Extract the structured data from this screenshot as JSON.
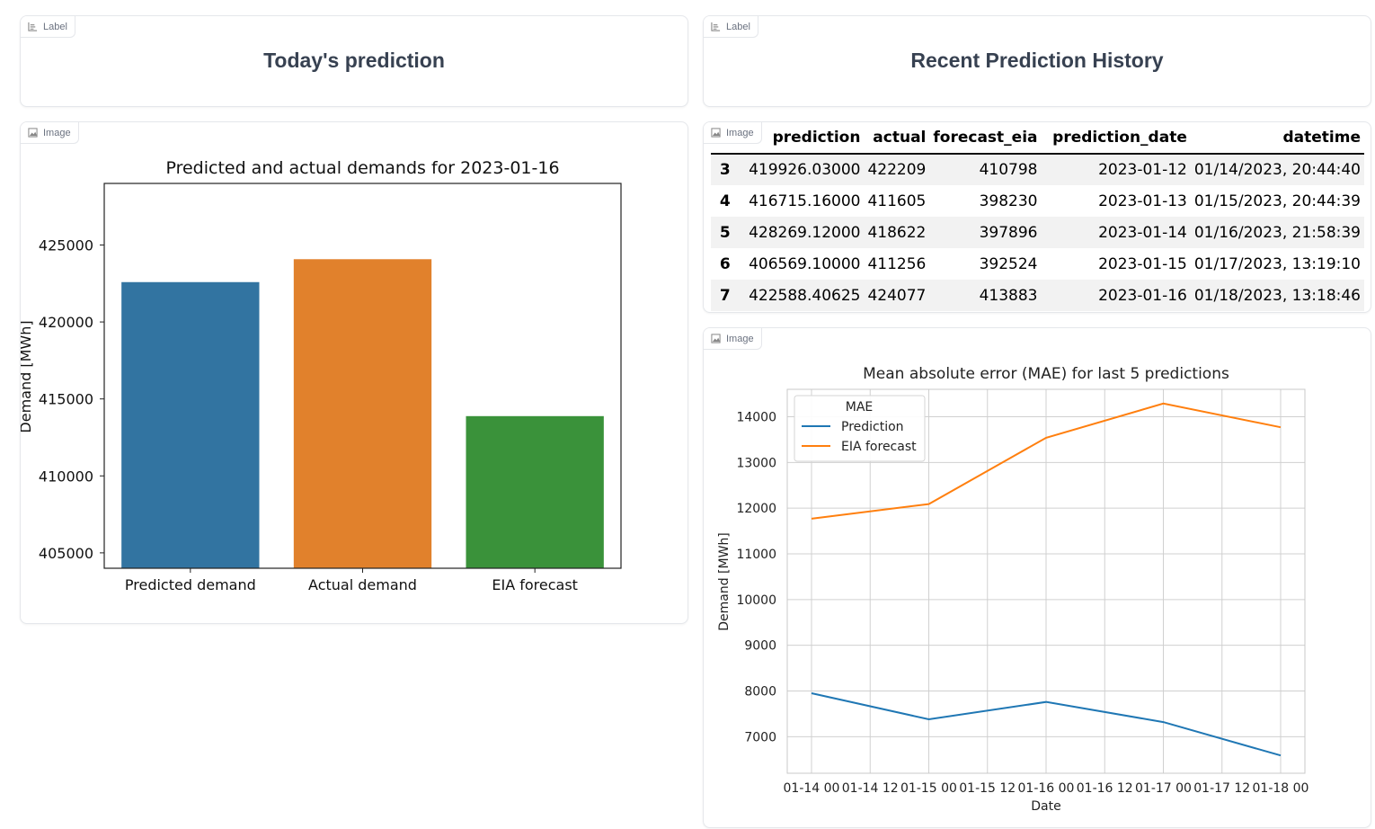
{
  "panels": {
    "today_label": {
      "tag": "Label",
      "title": "Today's prediction"
    },
    "history_label": {
      "tag": "Label",
      "title": "Recent Prediction History"
    },
    "bar_image": {
      "tag": "Image"
    },
    "table_image": {
      "tag": "Image"
    },
    "line_image": {
      "tag": "Image"
    }
  },
  "table": {
    "columns": [
      "",
      "prediction",
      "actual",
      "forecast_eia",
      "prediction_date",
      "datetime"
    ],
    "rows": [
      [
        "3",
        "419926.03000",
        "422209",
        "410798",
        "2023-01-12",
        "01/14/2023, 20:44:40"
      ],
      [
        "4",
        "416715.16000",
        "411605",
        "398230",
        "2023-01-13",
        "01/15/2023, 20:44:39"
      ],
      [
        "5",
        "428269.12000",
        "418622",
        "397896",
        "2023-01-14",
        "01/16/2023, 21:58:39"
      ],
      [
        "6",
        "406569.10000",
        "411256",
        "392524",
        "2023-01-15",
        "01/17/2023, 13:19:10"
      ],
      [
        "7",
        "422588.40625",
        "424077",
        "413883",
        "2023-01-16",
        "01/18/2023, 13:18:46"
      ]
    ]
  },
  "chart_data": [
    {
      "type": "bar",
      "title": "Predicted and actual demands for 2023-01-16",
      "xlabel": "",
      "ylabel": "Demand [MWh]",
      "categories": [
        "Predicted demand",
        "Actual demand",
        "EIA forecast"
      ],
      "values": [
        422588.40625,
        424077,
        413883
      ],
      "colors": [
        "#3274a1",
        "#e1812c",
        "#3a923a"
      ],
      "ylim": [
        404000,
        429000
      ],
      "yticks": [
        405000,
        410000,
        415000,
        420000,
        425000
      ],
      "grid": false
    },
    {
      "type": "line",
      "title": "Mean absolute error (MAE) for last 5 predictions",
      "xlabel": "Date",
      "ylabel": "Demand [MWh]",
      "x": [
        "2023-01-14",
        "2023-01-15",
        "2023-01-16",
        "2023-01-17",
        "2023-01-18"
      ],
      "xticks": [
        "01-14 00",
        "01-14 12",
        "01-15 00",
        "01-15 12",
        "01-16 00",
        "01-16 12",
        "01-17 00",
        "01-17 12",
        "01-18 00"
      ],
      "yticks": [
        7000,
        8000,
        9000,
        10000,
        11000,
        12000,
        13000,
        14000
      ],
      "ylim": [
        6200,
        14600
      ],
      "series": [
        {
          "name": "Prediction",
          "color": "#1f77b4",
          "values": [
            7950,
            7380,
            7760,
            7320,
            6590
          ]
        },
        {
          "name": "EIA forecast",
          "color": "#ff7f0e",
          "values": [
            11770,
            12090,
            13540,
            14290,
            13770
          ]
        }
      ],
      "legend_title": "MAE",
      "legend": "top-left",
      "grid": true
    }
  ]
}
